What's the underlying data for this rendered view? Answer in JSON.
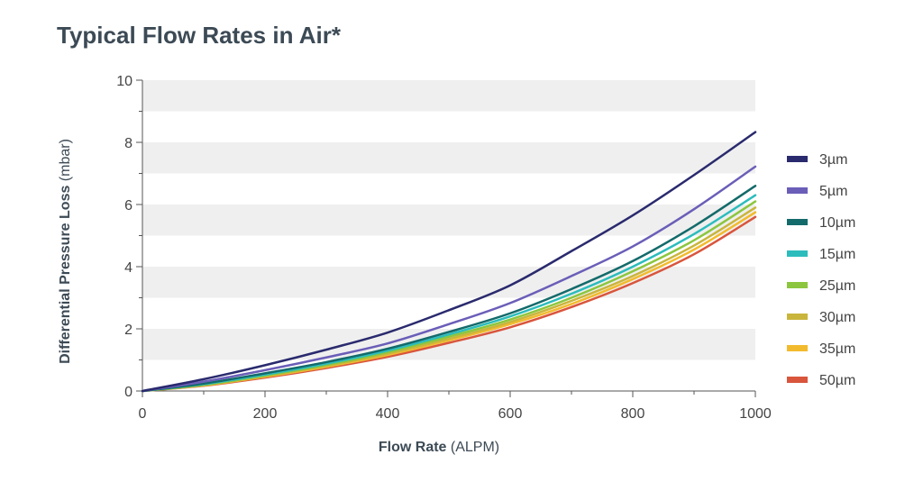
{
  "chart_data": {
    "type": "line",
    "title": "Typical Flow Rates in Air*",
    "xlabel": {
      "bold": "Flow Rate",
      "rest": "(ALPM)"
    },
    "ylabel": {
      "bold": "Differential Pressure Loss",
      "rest": "(mbar)"
    },
    "xlim": [
      0,
      1000
    ],
    "ylim": [
      0,
      10
    ],
    "x_ticks": [
      0,
      200,
      400,
      600,
      800,
      1000
    ],
    "y_ticks": [
      0,
      2,
      4,
      6,
      8,
      10
    ],
    "grid": "alternating horizontal bands",
    "legend_position": "right",
    "x": [
      0,
      100,
      200,
      300,
      400,
      500,
      600,
      700,
      800,
      900,
      1000
    ],
    "series": [
      {
        "name": "3µm",
        "color": "#2a2a6e",
        "values": [
          0,
          0.38,
          0.83,
          1.33,
          1.88,
          2.6,
          3.4,
          4.5,
          5.65,
          6.95,
          8.33
        ]
      },
      {
        "name": "5µm",
        "color": "#6a5eb8",
        "values": [
          0,
          0.3,
          0.67,
          1.08,
          1.53,
          2.15,
          2.83,
          3.7,
          4.65,
          5.85,
          7.22
        ]
      },
      {
        "name": "10µm",
        "color": "#136a6a",
        "values": [
          0,
          0.24,
          0.57,
          0.93,
          1.36,
          1.9,
          2.5,
          3.28,
          4.18,
          5.3,
          6.6
        ]
      },
      {
        "name": "15µm",
        "color": "#2cbcbc",
        "values": [
          0,
          0.22,
          0.53,
          0.88,
          1.3,
          1.82,
          2.4,
          3.13,
          4.0,
          5.05,
          6.3
        ]
      },
      {
        "name": "25µm",
        "color": "#8cc63e",
        "values": [
          0,
          0.2,
          0.5,
          0.84,
          1.25,
          1.75,
          2.3,
          3.0,
          3.85,
          4.85,
          6.1
        ]
      },
      {
        "name": "30µm",
        "color": "#c9b53c",
        "values": [
          0,
          0.19,
          0.48,
          0.81,
          1.2,
          1.68,
          2.22,
          2.9,
          3.7,
          4.68,
          5.9
        ]
      },
      {
        "name": "35µm",
        "color": "#f2bb2e",
        "values": [
          0,
          0.18,
          0.46,
          0.78,
          1.16,
          1.63,
          2.15,
          2.8,
          3.6,
          4.55,
          5.75
        ]
      },
      {
        "name": "50µm",
        "color": "#d9553c",
        "values": [
          0,
          0.17,
          0.43,
          0.74,
          1.1,
          1.55,
          2.05,
          2.7,
          3.47,
          4.4,
          5.6
        ]
      }
    ]
  }
}
